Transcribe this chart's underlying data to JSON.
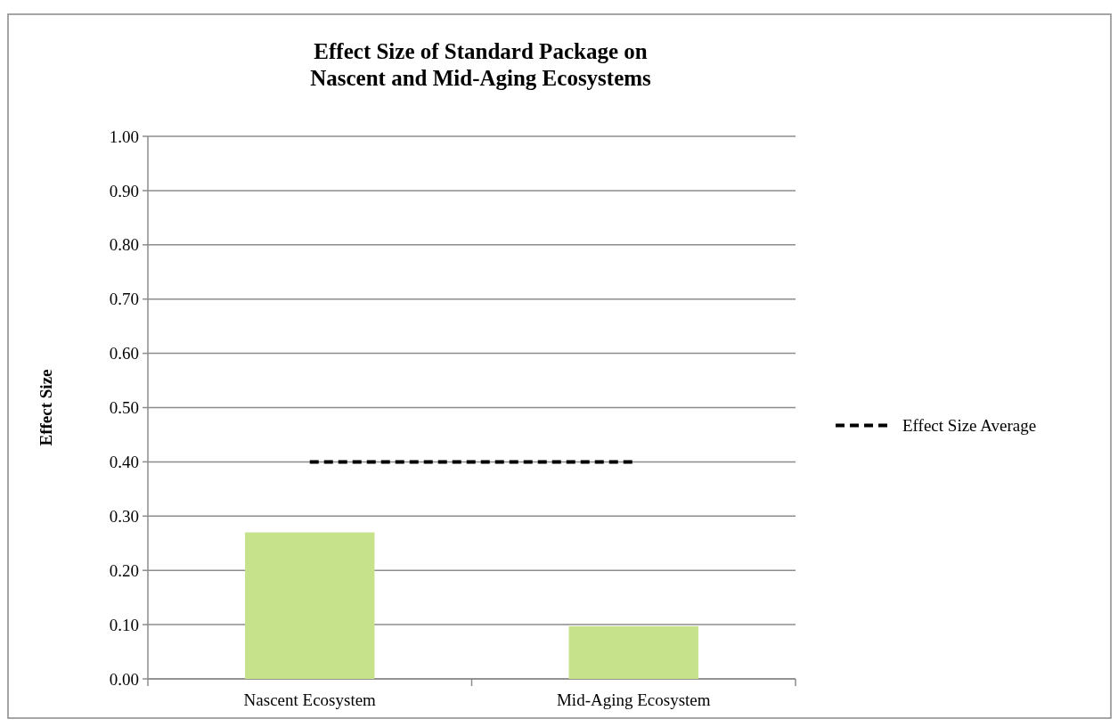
{
  "chart_data": {
    "type": "bar",
    "title": "Effect Size of Standard Package on\nNascent and Mid-Aging Ecosystems",
    "ylabel": "Effect Size",
    "categories": [
      "Nascent Ecosystem",
      "Mid-Aging Ecosystem"
    ],
    "series": [
      {
        "color": "#c6e38b",
        "values": [
          0.27,
          0.097
        ]
      },
      {
        "type": "line",
        "name": "Effect Size Average",
        "color": "#000000",
        "values": [
          0.4,
          0.4
        ],
        "line_style": "dashed"
      }
    ],
    "ylim": [
      0,
      1
    ],
    "yticks": [
      {
        "value": 0,
        "label": "0.00"
      },
      {
        "value": 0.1,
        "label": "0.10"
      },
      {
        "value": 0.2,
        "label": "0.20"
      },
      {
        "value": 0.3,
        "label": "0.30"
      },
      {
        "value": 0.4,
        "label": "0.40"
      },
      {
        "value": 0.5,
        "label": "0.50"
      },
      {
        "value": 0.6,
        "label": "0.60"
      },
      {
        "value": 0.7,
        "label": "0.70"
      },
      {
        "value": 0.8,
        "label": "0.80"
      },
      {
        "value": 0.9,
        "label": "0.90"
      },
      {
        "value": 1,
        "label": "1.00"
      }
    ],
    "grid": "y",
    "legend": "right"
  }
}
